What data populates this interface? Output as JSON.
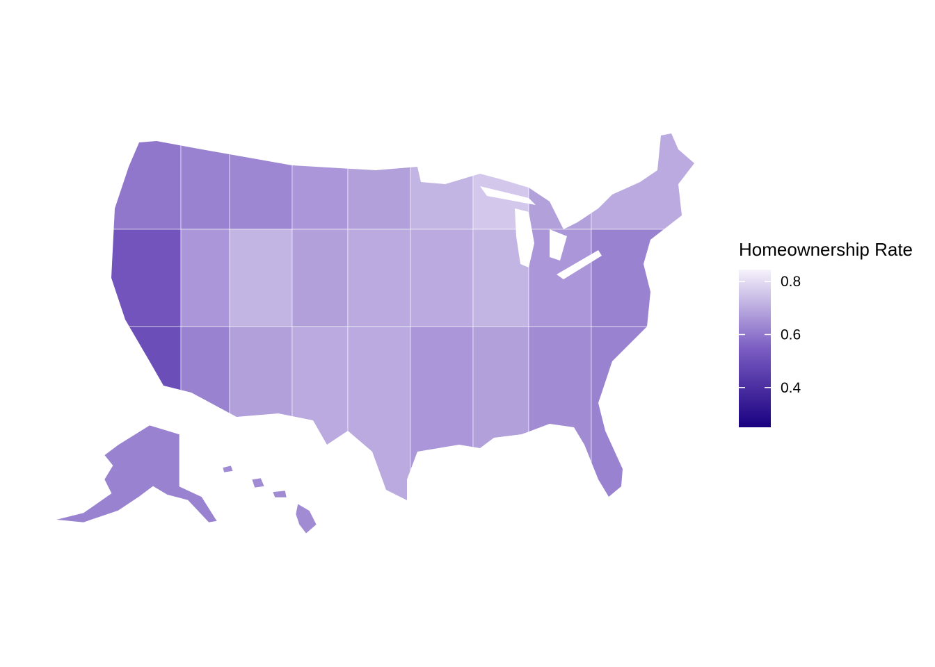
{
  "chart_data": {
    "type": "choropleth",
    "legend_title": "Homeownership Rate",
    "values": [
      0.6,
      0.62,
      0.63,
      0.66,
      0.68,
      0.72,
      0.76,
      0.68,
      0.7,
      0.52,
      0.66,
      0.72,
      0.68,
      0.7,
      0.7,
      0.72,
      0.66,
      0.62,
      0.5,
      0.62,
      0.68,
      0.7,
      0.7,
      0.66,
      0.68,
      0.64,
      0.62,
      0.62,
      0.64
    ],
    "limits": [
      0.25,
      0.845
    ],
    "ticks": [
      0.4,
      0.6,
      0.8
    ],
    "colors": [
      "#190080",
      "#7b5dc2",
      "#f6f3fb"
    ]
  }
}
